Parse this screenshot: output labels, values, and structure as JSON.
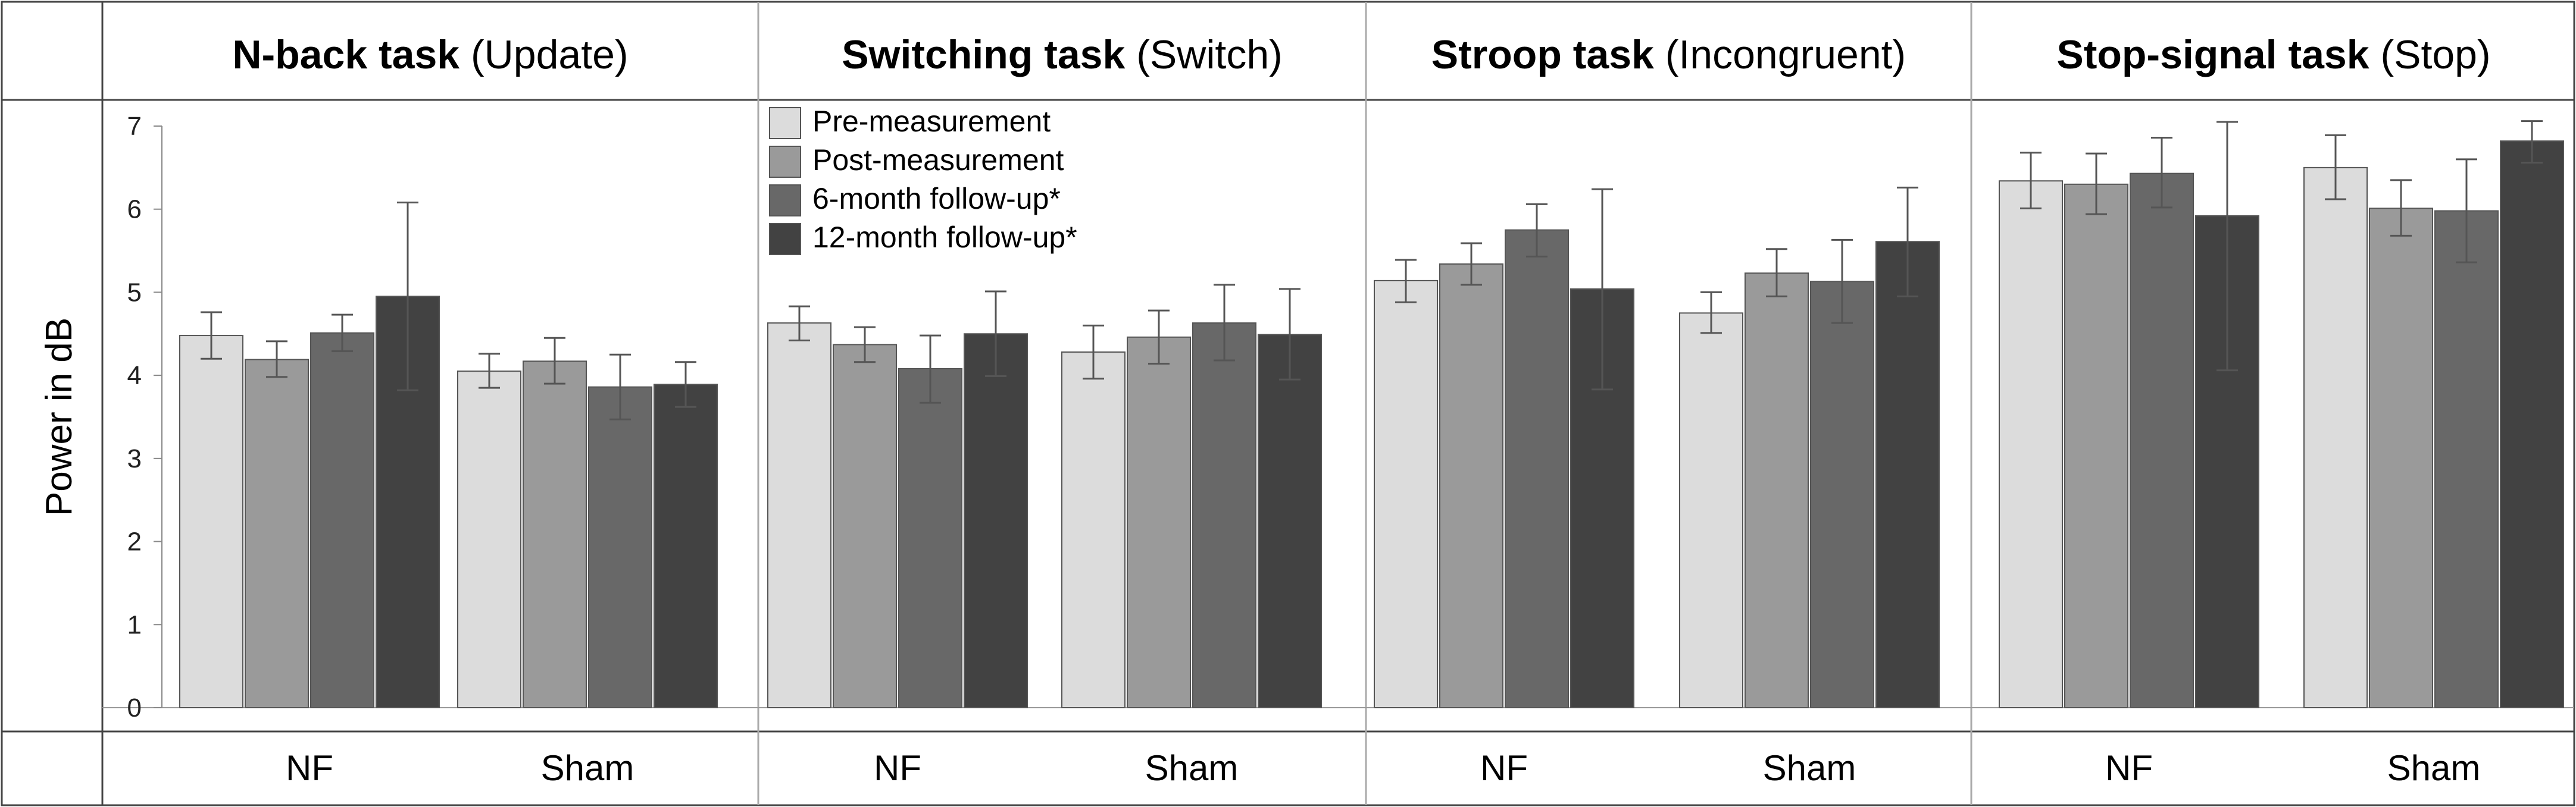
{
  "chart_data": {
    "type": "bar",
    "ylabel": "Power in dB",
    "ylim": [
      0,
      7
    ],
    "yticks": [
      "0",
      "1",
      "2",
      "3",
      "4",
      "5",
      "6",
      "7"
    ],
    "groups": [
      "NF",
      "Sham"
    ],
    "legend": {
      "placement": "top-left of second panel",
      "entries": [
        "Pre-measurement",
        "Post-measurement",
        "6-month follow-up*",
        "12-month follow-up*"
      ]
    },
    "series_colors": [
      "#dcdcdc",
      "#9a9a9a",
      "#686868",
      "#424242"
    ],
    "panels": [
      {
        "title_bold": "N-back task",
        "title_rest": " (Update)",
        "values": {
          "NF": [
            4.48,
            4.19,
            4.51,
            4.95
          ],
          "Sham": [
            4.05,
            4.17,
            3.86,
            3.89
          ]
        },
        "err_low": {
          "NF": [
            4.2,
            3.98,
            4.29,
            3.82
          ],
          "Sham": [
            3.85,
            3.9,
            3.47,
            3.62
          ]
        },
        "err_high": {
          "NF": [
            4.76,
            4.41,
            4.73,
            6.08
          ],
          "Sham": [
            4.26,
            4.45,
            4.25,
            4.16
          ]
        }
      },
      {
        "title_bold": "Switching task",
        "title_rest": " (Switch)",
        "values": {
          "NF": [
            4.63,
            4.37,
            4.08,
            4.5
          ],
          "Sham": [
            4.28,
            4.46,
            4.63,
            4.49
          ]
        },
        "err_low": {
          "NF": [
            4.42,
            4.16,
            3.67,
            3.99
          ],
          "Sham": [
            3.96,
            4.14,
            4.18,
            3.95
          ]
        },
        "err_high": {
          "NF": [
            4.83,
            4.58,
            4.48,
            5.01
          ],
          "Sham": [
            4.6,
            4.78,
            5.09,
            5.04
          ]
        }
      },
      {
        "title_bold": "Stroop task",
        "title_rest": " (Incongruent)",
        "values": {
          "NF": [
            5.14,
            5.34,
            5.75,
            5.04
          ],
          "Sham": [
            4.75,
            5.23,
            5.13,
            5.61
          ]
        },
        "err_low": {
          "NF": [
            4.88,
            5.09,
            5.43,
            3.83
          ],
          "Sham": [
            4.51,
            4.95,
            4.63,
            4.95
          ]
        },
        "err_high": {
          "NF": [
            5.39,
            5.59,
            6.06,
            6.24
          ],
          "Sham": [
            5.0,
            5.52,
            5.63,
            6.26
          ]
        }
      },
      {
        "title_bold": "Stop-signal task",
        "title_rest": " (Stop)",
        "values": {
          "NF": [
            6.34,
            6.3,
            6.43,
            5.92
          ],
          "Sham": [
            6.5,
            6.01,
            5.98,
            6.82
          ]
        },
        "err_low": {
          "NF": [
            6.01,
            5.94,
            6.02,
            4.06
          ],
          "Sham": [
            6.12,
            5.68,
            5.36,
            6.56
          ]
        },
        "err_high": {
          "NF": [
            6.68,
            6.67,
            6.86,
            7.05
          ],
          "Sham": [
            6.89,
            6.35,
            6.6,
            7.06
          ]
        }
      }
    ]
  }
}
